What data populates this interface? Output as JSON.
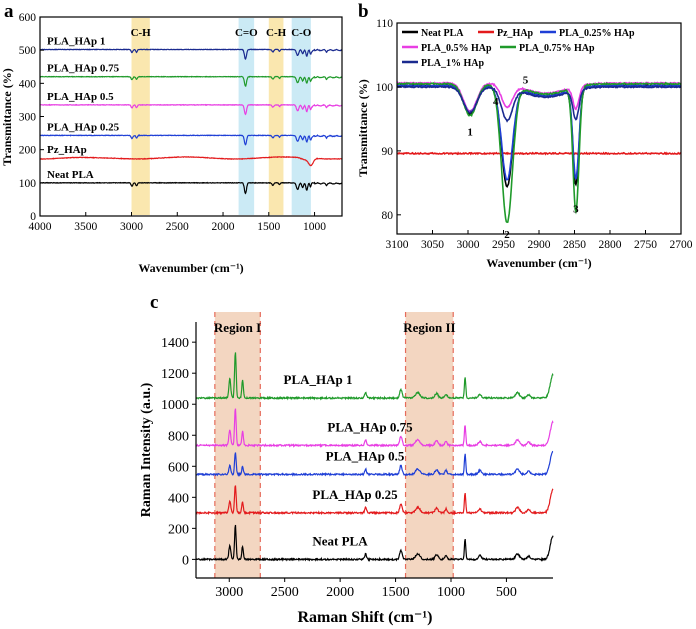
{
  "figure": {
    "panel_letters": [
      "a",
      "b",
      "c"
    ]
  },
  "chart_data": [
    {
      "panel": "a",
      "type": "line",
      "xlabel": "Wavenumber (cm⁻¹)",
      "ylabel": "Transmittance (%)",
      "xlim": [
        4000,
        700
      ],
      "ylim": [
        0,
        600
      ],
      "xticks": [
        4000,
        3500,
        3000,
        2500,
        2000,
        1500,
        1000
      ],
      "yticks": [
        0,
        100,
        200,
        300,
        400,
        500,
        600
      ],
      "bands": [
        {
          "label": "C-H",
          "from": 3000,
          "to": 2800,
          "color": "#f6d77a"
        },
        {
          "label": "C=O",
          "from": 1830,
          "to": 1660,
          "color": "#a9dcef"
        },
        {
          "label": "C-H",
          "from": 1500,
          "to": 1340,
          "color": "#f6d77a"
        },
        {
          "label": "C-O",
          "from": 1250,
          "to": 1040,
          "color": "#a9dcef"
        }
      ],
      "series": [
        {
          "name": "Neat PLA",
          "color": "#000000",
          "baseline": 100
        },
        {
          "name": "Pz_HAp",
          "color": "#e31a1c",
          "baseline": 175
        },
        {
          "name": "PLA_HAp 0.25",
          "color": "#1f3fd6",
          "baseline": 243
        },
        {
          "name": "PLA_HAp 0.5",
          "color": "#e83ee3",
          "baseline": 335
        },
        {
          "name": "PLA_HAp 0.75",
          "color": "#1f9a2a",
          "baseline": 420
        },
        {
          "name": "PLA_HAp 1",
          "color": "#1a2a8f",
          "baseline": 502
        }
      ]
    },
    {
      "panel": "b",
      "type": "line",
      "xlabel": "Wavenumber (cm⁻¹)",
      "ylabel": "Transmittance (%)",
      "xlim": [
        3100,
        2700
      ],
      "ylim": [
        77,
        110
      ],
      "xticks": [
        3100,
        3050,
        3000,
        2950,
        2900,
        2850,
        2800,
        2750,
        2700
      ],
      "yticks": [
        80,
        90,
        100,
        110
      ],
      "legend": [
        "Neat PLA",
        "Pz_HAp",
        "PLA_0.25% HAp",
        "PLA_0.5% HAp",
        "PLA_0.75% HAp",
        "PLA_1% HAp"
      ],
      "peak_labels": [
        {
          "label": "1",
          "x": 2997,
          "y": 93
        },
        {
          "label": "2",
          "x": 2945,
          "y": 77
        },
        {
          "label": "3",
          "x": 2848,
          "y": 81
        },
        {
          "label": "4",
          "x": 2961,
          "y": 97.8
        },
        {
          "label": "5",
          "x": 2919,
          "y": 101.2
        }
      ],
      "series": [
        {
          "name": "Neat PLA",
          "color": "#000000",
          "base": 100.2,
          "peaks": [
            [
              2997,
              4.5,
              13
            ],
            [
              2945,
              15.5,
              11
            ],
            [
              2848,
              15,
              6
            ]
          ]
        },
        {
          "name": "Pz_HAp",
          "color": "#e31a1c",
          "base": 89.6,
          "peaks": []
        },
        {
          "name": "PLA_0.25% HAp",
          "color": "#1f3fd6",
          "base": 100.2,
          "peaks": [
            [
              2997,
              4,
              13
            ],
            [
              2945,
              14.5,
              11
            ],
            [
              2848,
              14,
              6
            ]
          ]
        },
        {
          "name": "PLA_0.5% HAp",
          "color": "#e83ee3",
          "base": 100.6,
          "peaks": [
            [
              2997,
              4.5,
              13
            ],
            [
              2945,
              3.5,
              11
            ],
            [
              2848,
              3.5,
              6
            ]
          ]
        },
        {
          "name": "PLA_0.75% HAp",
          "color": "#1f9a2a",
          "base": 100.5,
          "peaks": [
            [
              2997,
              5,
              13
            ],
            [
              2945,
              21.5,
              11
            ],
            [
              2848,
              19.5,
              6
            ]
          ]
        },
        {
          "name": "PLA_1% HAp",
          "color": "#1a2a8f",
          "base": 100.0,
          "peaks": [
            [
              2997,
              4,
              13
            ],
            [
              2945,
              5,
              11
            ],
            [
              2848,
              4.5,
              6
            ]
          ]
        }
      ]
    },
    {
      "panel": "c",
      "type": "line",
      "xlabel": "Raman Shift (cm⁻¹)",
      "ylabel": "Raman Intensity (a.u.)",
      "xlim": [
        3300,
        80
      ],
      "ylim": [
        -120,
        1530
      ],
      "xticks": [
        3000,
        2500,
        2000,
        1500,
        1000,
        500
      ],
      "yticks": [
        0,
        200,
        400,
        600,
        800,
        1000,
        1200,
        1400
      ],
      "regions": [
        {
          "label": "Region I",
          "from": 3130,
          "to": 2720
        },
        {
          "label": "Region II",
          "from": 1410,
          "to": 980
        }
      ],
      "series": [
        {
          "name": "Neat PLA",
          "color": "#000000",
          "baseline": 0,
          "main_peak": 2945,
          "main_height": 220
        },
        {
          "name": "PLA_HAp 0.25",
          "color": "#e31a1c",
          "baseline": 300,
          "main_peak": 2945,
          "main_height": 180
        },
        {
          "name": "PLA_HAp 0.5",
          "color": "#1f3fd6",
          "baseline": 548,
          "main_peak": 2945,
          "main_height": 140
        },
        {
          "name": "PLA_HAp 0.75",
          "color": "#e83ee3",
          "baseline": 735,
          "main_peak": 2945,
          "main_height": 240
        },
        {
          "name": "PLA_HAp 1",
          "color": "#1f9a2a",
          "baseline": 1040,
          "main_peak": 2945,
          "main_height": 300
        }
      ]
    }
  ]
}
